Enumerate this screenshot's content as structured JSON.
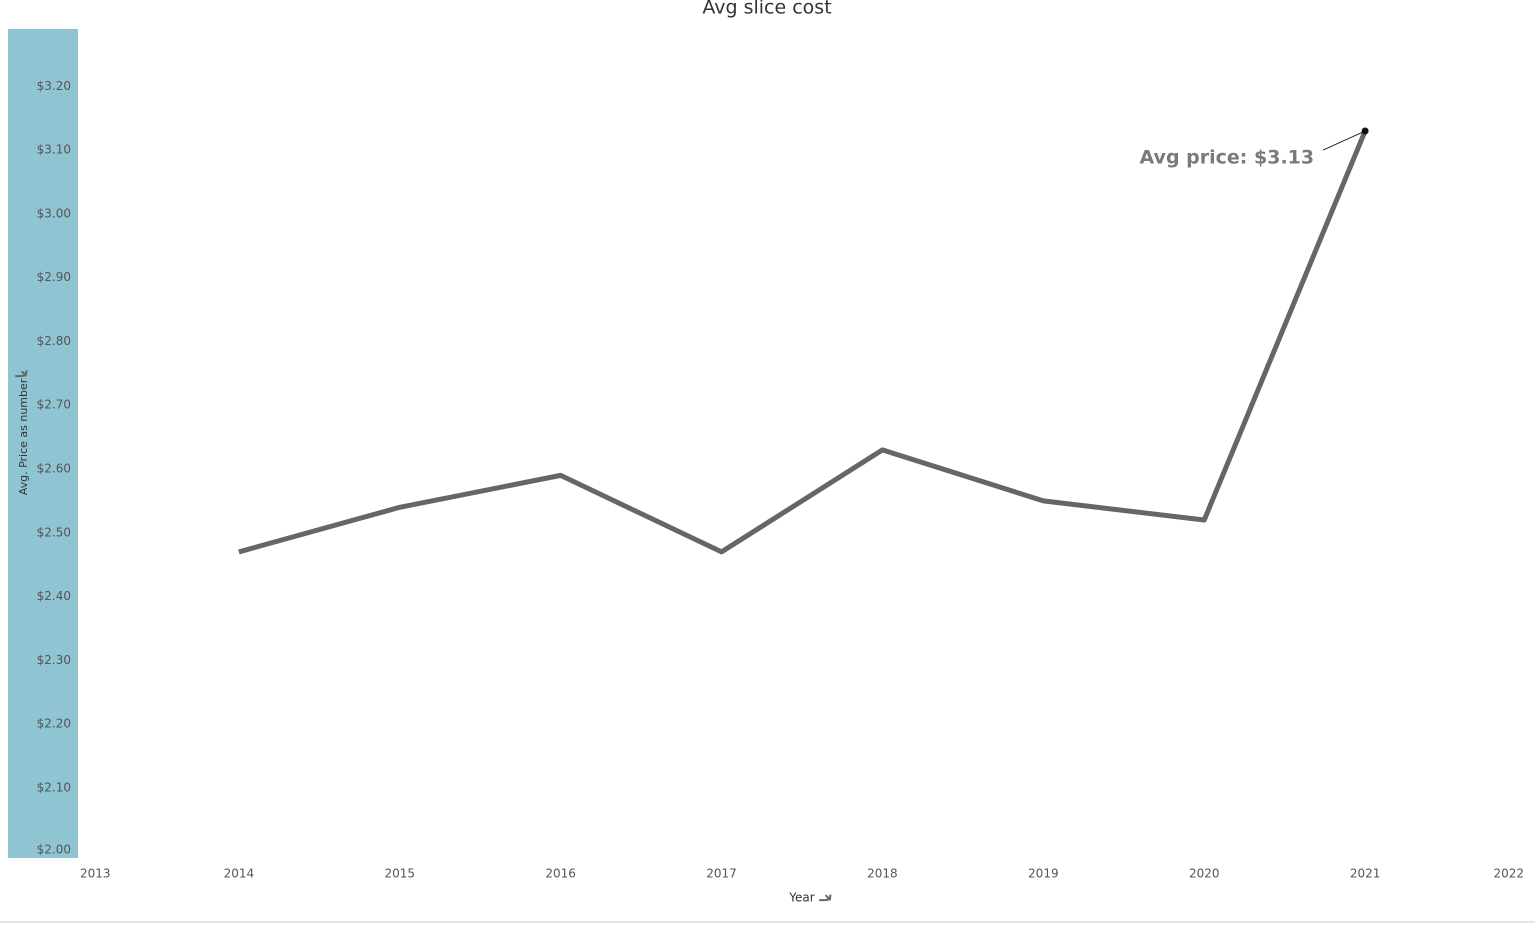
{
  "chart_data": {
    "type": "line",
    "title": "Avg slice cost",
    "x_label": "Year",
    "y_label": "Avg. Price as number",
    "x": [
      2014,
      2015,
      2016,
      2017,
      2018,
      2019,
      2020,
      2021
    ],
    "series": [
      {
        "name": "Avg. Price as number",
        "color": "#666666",
        "values": [
          2.47,
          2.54,
          2.59,
          2.47,
          2.63,
          2.55,
          2.52,
          3.13
        ]
      }
    ],
    "xlim": [
      2013,
      2022
    ],
    "xticks": [
      2013,
      2014,
      2015,
      2016,
      2017,
      2018,
      2019,
      2020,
      2021,
      2022
    ],
    "ylim": [
      1.99,
      3.29
    ],
    "yticks": [
      {
        "value": 2.0,
        "label": "$2.00"
      },
      {
        "value": 2.1,
        "label": "$2.10"
      },
      {
        "value": 2.2,
        "label": "$2.20"
      },
      {
        "value": 2.3,
        "label": "$2.30"
      },
      {
        "value": 2.4,
        "label": "$2.40"
      },
      {
        "value": 2.5,
        "label": "$2.50"
      },
      {
        "value": 2.6,
        "label": "$2.60"
      },
      {
        "value": 2.7,
        "label": "$2.70"
      },
      {
        "value": 2.8,
        "label": "$2.80"
      },
      {
        "value": 2.9,
        "label": "$2.90"
      },
      {
        "value": 3.0,
        "label": "$3.00"
      },
      {
        "value": 3.1,
        "label": "$3.10"
      },
      {
        "value": 3.2,
        "label": "$3.20"
      }
    ],
    "axis_band_color": "#8fc5d3",
    "annotation": "Avg price: $3.13"
  }
}
